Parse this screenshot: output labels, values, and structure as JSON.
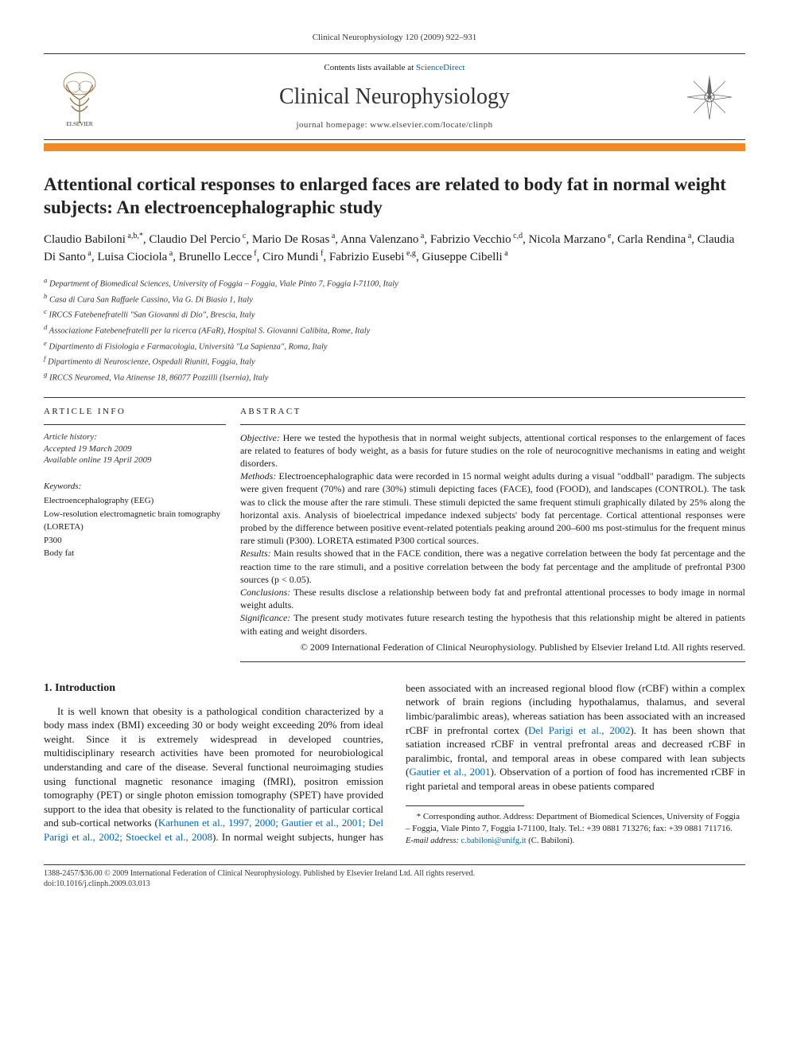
{
  "running_head": "Clinical Neurophysiology 120 (2009) 922–931",
  "banner": {
    "contents_pre": "Contents lists available at ",
    "contents_link": "ScienceDirect",
    "journal": "Clinical Neurophysiology",
    "homepage": "journal homepage: www.elsevier.com/locate/clinph"
  },
  "title": "Attentional cortical responses to enlarged faces are related to body fat in normal weight subjects: An electroencephalographic study",
  "authors_html": "Claudio Babiloni<sup> a,b,*</sup>, Claudio Del Percio<sup> c</sup>, Mario De Rosas<sup> a</sup>, Anna Valenzano<sup> a</sup>, Fabrizio Vecchio<sup> c,d</sup>, Nicola Marzano<sup> e</sup>, Carla Rendina<sup> a</sup>, Claudia Di Santo<sup> a</sup>, Luisa Ciociola<sup> a</sup>, Brunello Lecce<sup> f</sup>, Ciro Mundi<sup> f</sup>, Fabrizio Eusebi<sup> e,g</sup>, Giuseppe Cibelli<sup> a</sup>",
  "affiliations": [
    "a Department of Biomedical Sciences, University of Foggia – Foggia, Viale Pinto 7, Foggia I-71100, Italy",
    "b Casa di Cura San Raffaele Cassino, Via G. Di Biasio 1, Italy",
    "c IRCCS Fatebenefratelli \"San Giovanni di Dio\", Brescia, Italy",
    "d Associazione Fatebenefratelli per la ricerca (AFaR), Hospital S. Giovanni Calibita, Rome, Italy",
    "e Dipartimento di Fisiologia e Farmacologia, Università \"La Sapienza\", Roma, Italy",
    "f Dipartimento di Neuroscienze, Ospedali Riuniti, Foggia, Italy",
    "g IRCCS Neuromed, Via Atinense 18, 86077 Pozzilli (Isernia), Italy"
  ],
  "article_info": {
    "head": "ARTICLE INFO",
    "history_label": "Article history:",
    "accepted": "Accepted 19 March 2009",
    "online": "Available online 19 April 2009",
    "keywords_label": "Keywords:",
    "keywords": [
      "Electroencephalography (EEG)",
      "Low-resolution electromagnetic brain tomography (LORETA)",
      "P300",
      "Body fat"
    ]
  },
  "abstract": {
    "head": "ABSTRACT",
    "objective_label": "Objective:",
    "objective": " Here we tested the hypothesis that in normal weight subjects, attentional cortical responses to the enlargement of faces are related to features of body weight, as a basis for future studies on the role of neurocognitive mechanisms in eating and weight disorders.",
    "methods_label": "Methods:",
    "methods": " Electroencephalographic data were recorded in 15 normal weight adults during a visual \"oddball\" paradigm. The subjects were given frequent (70%) and rare (30%) stimuli depicting faces (FACE), food (FOOD), and landscapes (CONTROL). The task was to click the mouse after the rare stimuli. These stimuli depicted the same frequent stimuli graphically dilated by 25% along the horizontal axis. Analysis of bioelectrical impedance indexed subjects' body fat percentage. Cortical attentional responses were probed by the difference between positive event-related potentials peaking around 200–600 ms post-stimulus for the frequent minus rare stimuli (P300). LORETA estimated P300 cortical sources.",
    "results_label": "Results:",
    "results": " Main results showed that in the FACE condition, there was a negative correlation between the body fat percentage and the reaction time to the rare stimuli, and a positive correlation between the body fat percentage and the amplitude of prefrontal P300 sources (p < 0.05).",
    "conclusions_label": "Conclusions:",
    "conclusions": " These results disclose a relationship between body fat and prefrontal attentional processes to body image in normal weight adults.",
    "significance_label": "Significance:",
    "significance": " The present study motivates future research testing the hypothesis that this relationship might be altered in patients with eating and weight disorders.",
    "copyright": "© 2009 International Federation of Clinical Neurophysiology. Published by Elsevier Ireland Ltd. All rights reserved."
  },
  "intro": {
    "heading": "1. Introduction",
    "para1_pre": "It is well known that obesity is a pathological condition characterized by a body mass index (BMI) exceeding 30 or body weight exceeding 20% from ideal weight. Since it is extremely widespread in developed countries, multidisciplinary research activities have been promoted for neurobiological understanding and care of the disease. Several functional neuroimaging studies using functional magnetic resonance imaging (fMRI), positron emission tomography (PET) or single photon emission tomography (SPET) have provided support to the idea that obesity is related to the functionality of particular cortical and sub-cortical networks (",
    "cite1": "Karhunen et al., 1997, 2000; Gautier et al., 2001; Del Parigi et al., 2002; Stoeckel et al., 2008",
    "para1_mid1": "). In normal weight subjects, hunger has been associated with an increased regional blood flow (rCBF) within a complex network of brain regions (including hypothalamus, thalamus, and several limbic/paralimbic areas), whereas satiation has been associated with an increased rCBF in prefrontal cortex (",
    "cite2": "Del Parigi et al., 2002",
    "para1_mid2": "). It has been shown that satiation increased rCBF in ventral prefrontal areas and decreased rCBF in paralimbic, frontal, and temporal areas in obese compared with lean subjects (",
    "cite3": "Gautier et al., 2001",
    "para1_end": "). Observation of a portion of food has incremented rCBF in right parietal and temporal areas in obese patients compared"
  },
  "footnote": {
    "corr_label": "* Corresponding author. Address: Department of Biomedical Sciences, University of Foggia – Foggia, Viale Pinto 7, Foggia I-71100, Italy. Tel.: +39 0881 713276; fax: +39 0881 711716.",
    "email_label": "E-mail address: ",
    "email": "c.babiloni@unifg.it",
    "email_who": " (C. Babiloni)."
  },
  "footer": {
    "line1": "1388-2457/$36.00 © 2009 International Federation of Clinical Neurophysiology. Published by Elsevier Ireland Ltd. All rights reserved.",
    "line2": "doi:10.1016/j.clinph.2009.03.013"
  },
  "colors": {
    "orange": "#f08a24",
    "link": "#0066b3",
    "text": "#1a1a1a"
  }
}
